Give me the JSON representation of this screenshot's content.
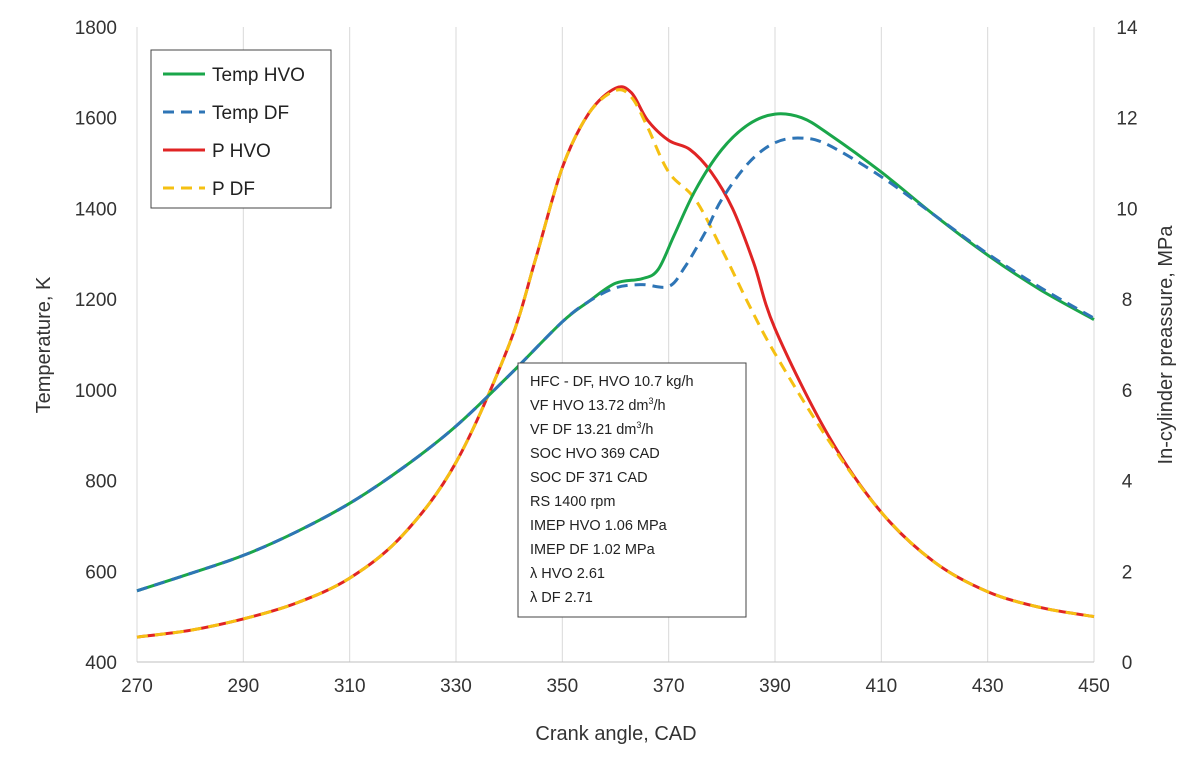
{
  "chart_data": {
    "type": "line",
    "title": "",
    "xlabel": "Crank angle, CAD",
    "ylabel": "Temperature, K",
    "y2label": "In-cylinder preassure, MPa",
    "xlim": [
      270,
      450
    ],
    "ylim": [
      400,
      1800
    ],
    "y2lim": [
      0,
      14
    ],
    "xticks": [
      "270",
      "290",
      "310",
      "330",
      "350",
      "370",
      "390",
      "410",
      "430",
      "450"
    ],
    "yticks": [
      "400",
      "600",
      "800",
      "1000",
      "1200",
      "1400",
      "1600",
      "1800"
    ],
    "y2ticks": [
      "0",
      "2",
      "4",
      "6",
      "8",
      "10",
      "12",
      "14"
    ],
    "grid": "vertical",
    "legend_position": "top-left",
    "series": [
      {
        "name": "Temp HVO",
        "axis": "left",
        "color": "#1aa64a",
        "dash": "solid",
        "x": [
          270,
          280,
          290,
          300,
          310,
          320,
          330,
          340,
          350,
          355,
          360,
          365,
          368,
          371,
          375,
          380,
          385,
          390,
          395,
          400,
          410,
          420,
          430,
          440,
          450
        ],
        "y": [
          557,
          595,
          635,
          687,
          750,
          828,
          920,
          1032,
          1150,
          1195,
          1235,
          1245,
          1265,
          1340,
          1440,
          1530,
          1585,
          1608,
          1600,
          1565,
          1480,
          1385,
          1297,
          1220,
          1155
        ]
      },
      {
        "name": "Temp DF",
        "axis": "left",
        "color": "#2e75b6",
        "dash": "dashed",
        "x": [
          270,
          280,
          290,
          300,
          310,
          320,
          330,
          340,
          350,
          355,
          360,
          365,
          370,
          373,
          377,
          380,
          385,
          390,
          395,
          400,
          410,
          420,
          430,
          440,
          450
        ],
        "y": [
          557,
          595,
          635,
          687,
          750,
          828,
          920,
          1032,
          1150,
          1195,
          1225,
          1232,
          1228,
          1270,
          1350,
          1420,
          1500,
          1545,
          1555,
          1540,
          1470,
          1385,
          1300,
          1225,
          1158
        ]
      },
      {
        "name": "P HVO",
        "axis": "right",
        "color": "#e02424",
        "dash": "solid",
        "x": [
          270,
          280,
          290,
          300,
          310,
          320,
          330,
          340,
          345,
          350,
          355,
          360,
          363,
          366,
          370,
          374,
          378,
          382,
          386,
          390,
          400,
          410,
          420,
          430,
          440,
          450
        ],
        "y": [
          0.55,
          0.7,
          0.95,
          1.3,
          1.85,
          2.8,
          4.4,
          7.0,
          8.9,
          10.9,
          12.1,
          12.65,
          12.55,
          11.95,
          11.5,
          11.3,
          10.8,
          10.0,
          8.8,
          7.35,
          5.0,
          3.3,
          2.2,
          1.55,
          1.2,
          1.0
        ]
      },
      {
        "name": "P DF",
        "axis": "right",
        "color": "#f5c012",
        "dash": "dashed",
        "x": [
          270,
          280,
          290,
          300,
          310,
          320,
          330,
          340,
          345,
          350,
          355,
          360,
          363,
          366,
          370,
          375,
          380,
          385,
          390,
          400,
          410,
          420,
          430,
          440,
          450
        ],
        "y": [
          0.55,
          0.7,
          0.95,
          1.3,
          1.85,
          2.8,
          4.4,
          7.0,
          8.9,
          10.9,
          12.1,
          12.6,
          12.45,
          11.8,
          10.8,
          10.2,
          9.1,
          7.9,
          6.8,
          4.9,
          3.3,
          2.2,
          1.55,
          1.2,
          1.0
        ]
      }
    ],
    "annotations": [
      "HFC - DF, HVO 10.7 kg/h",
      "VF HVO 13.72 dm3/h",
      "VF DF 13.21 dm3/h",
      "SOC HVO 369 CAD",
      "SOC DF 371 CAD",
      "RS 1400 rpm",
      "IMEP HVO 1.06 MPa",
      "IMEP DF 1.02 MPa",
      "λ HVO 2.61",
      "λ DF 2.71"
    ]
  }
}
